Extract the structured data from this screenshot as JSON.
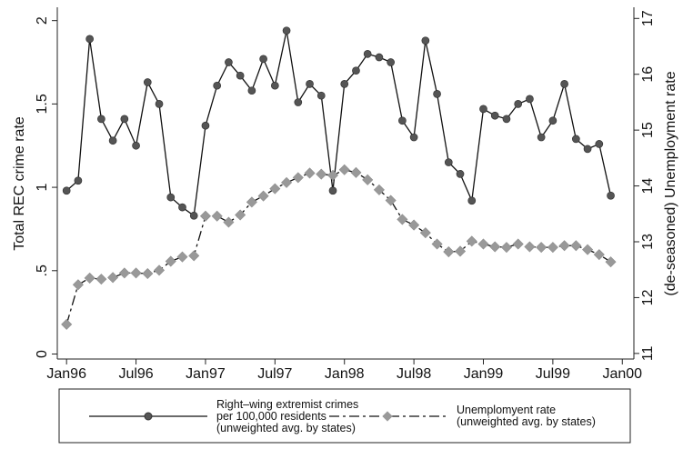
{
  "chart_data": {
    "type": "line",
    "x": [
      "Jan96",
      "Feb96",
      "Mar96",
      "Apr96",
      "May96",
      "Jun96",
      "Jul96",
      "Aug96",
      "Sep96",
      "Oct96",
      "Nov96",
      "Dec96",
      "Jan97",
      "Feb97",
      "Mar97",
      "Apr97",
      "May97",
      "Jun97",
      "Jul97",
      "Aug97",
      "Sep97",
      "Oct97",
      "Nov97",
      "Dec97",
      "Jan98",
      "Feb98",
      "Mar98",
      "Apr98",
      "May98",
      "Jun98",
      "Jul98",
      "Aug98",
      "Sep98",
      "Oct98",
      "Nov98",
      "Dec98",
      "Jan99",
      "Feb99",
      "Mar99",
      "Apr99",
      "May99",
      "Jun99",
      "Jul99",
      "Aug99",
      "Sep99",
      "Oct99",
      "Nov99",
      "Dec99"
    ],
    "xticks": [
      {
        "value": 0,
        "label": "Jan96"
      },
      {
        "value": 6,
        "label": "Jul96"
      },
      {
        "value": 12,
        "label": "Jan97"
      },
      {
        "value": 18,
        "label": "Jul97"
      },
      {
        "value": 24,
        "label": "Jan98"
      },
      {
        "value": 30,
        "label": "Jul98"
      },
      {
        "value": 36,
        "label": "Jan99"
      },
      {
        "value": 42,
        "label": "Jul99"
      },
      {
        "value": 48,
        "label": "Jan00"
      }
    ],
    "xlim": [
      -0.8,
      49
    ],
    "y_label": "Total REC crime rate",
    "y2_label": "(de-seasoned) Unemployment rate",
    "ylim": [
      -0.03,
      2.08
    ],
    "yticks": [
      0,
      {
        "value": 0.5,
        "label": ".5"
      },
      1,
      1.5,
      2
    ],
    "y2lim": [
      10.9,
      17.2
    ],
    "y2ticks": [
      11,
      12,
      13,
      14,
      15,
      16,
      17
    ],
    "series": [
      {
        "name": "Right–wing extremist crimes\nper 100,000 residents\n(unweighted avg. by states)",
        "color": "#555555",
        "values": [
          0.98,
          1.04,
          1.89,
          1.41,
          1.28,
          1.41,
          1.25,
          1.63,
          1.5,
          0.94,
          0.88,
          0.83,
          1.37,
          1.61,
          1.75,
          1.67,
          1.58,
          1.77,
          1.61,
          1.94,
          1.51,
          1.62,
          1.55,
          0.98,
          1.62,
          1.7,
          1.8,
          1.78,
          1.75,
          1.4,
          1.3,
          1.88,
          1.56,
          1.15,
          1.08,
          0.92,
          1.47,
          1.43,
          1.41,
          1.5,
          1.53,
          1.3,
          1.4,
          1.62,
          1.29,
          1.23,
          1.26,
          0.95
        ]
      },
      {
        "name": "Unemplomyent rate\n(unweighted avg. by states)",
        "color": "#999999",
        "axis": "y2",
        "values": [
          11.52,
          12.23,
          12.35,
          12.33,
          12.36,
          12.44,
          12.44,
          12.43,
          12.49,
          12.65,
          12.73,
          12.75,
          13.46,
          13.46,
          13.35,
          13.48,
          13.71,
          13.82,
          13.95,
          14.06,
          14.15,
          14.23,
          14.21,
          14.19,
          14.29,
          14.24,
          14.11,
          13.93,
          13.74,
          13.4,
          13.3,
          13.16,
          12.96,
          12.82,
          12.83,
          13.01,
          12.96,
          12.91,
          12.9,
          12.96,
          12.91,
          12.9,
          12.9,
          12.93,
          12.93,
          12.86,
          12.77,
          12.64
        ]
      }
    ]
  }
}
